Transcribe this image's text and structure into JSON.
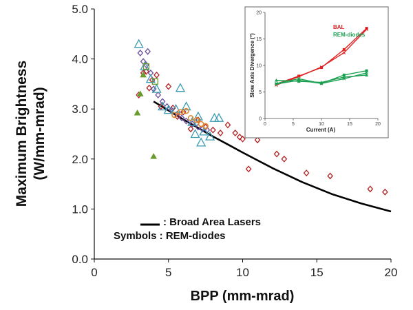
{
  "chart_data": [
    {
      "type": "scatter",
      "title": "",
      "xlabel": "BPP (mm-mrad)",
      "ylabel": "Maximum Brightness (W/mm-mrad)",
      "ylabel_lines": [
        "Maximum Brightness",
        "(W/mm-mrad)"
      ],
      "xlim": [
        0,
        20
      ],
      "ylim": [
        0,
        5
      ],
      "xticks": [
        "0",
        "5",
        "10",
        "15",
        "20"
      ],
      "yticks": [
        "0.0",
        "1.0",
        "2.0",
        "3.0",
        "4.0",
        "5.0"
      ],
      "grid": false,
      "legend": {
        "placement": "bottom-left",
        "line_label": ": Broad Area Lasers",
        "symbols_label": "Symbols : REM-diodes"
      },
      "curve": {
        "name": "Broad Area Lasers",
        "color": "#000000",
        "x": [
          4.0,
          5,
          6,
          7,
          8,
          9,
          10,
          12,
          14,
          16,
          18,
          20
        ],
        "y": [
          3.15,
          2.97,
          2.79,
          2.62,
          2.45,
          2.29,
          2.13,
          1.82,
          1.54,
          1.3,
          1.11,
          0.95
        ]
      },
      "series": [
        {
          "marker": "diamond",
          "color": "#b22222",
          "x": [
            3.0,
            3.3,
            3.5,
            3.7,
            3.9,
            4.2,
            4.5,
            5.0,
            5.3,
            5.6,
            6.0,
            6.5,
            7.0,
            7.5,
            8.0,
            8.5,
            9.0,
            9.5,
            9.8,
            10.0,
            10.4,
            11.0,
            12.3,
            12.8,
            14.3,
            15.9,
            18.6,
            19.6
          ],
          "y": [
            3.28,
            3.72,
            3.75,
            3.42,
            3.58,
            3.68,
            3.05,
            3.45,
            3.02,
            2.85,
            2.94,
            2.6,
            2.78,
            2.64,
            2.58,
            2.52,
            2.68,
            2.52,
            2.44,
            2.4,
            1.8,
            2.38,
            2.1,
            2.0,
            1.72,
            1.66,
            1.4,
            1.34
          ]
        },
        {
          "marker": "diamond",
          "color": "#6a4c9c",
          "x": [
            3.1,
            3.3,
            3.5,
            3.6,
            3.8,
            4.0,
            4.3,
            4.6,
            4.9,
            5.2,
            5.6,
            5.9,
            6.2,
            6.6,
            7.0,
            7.3,
            7.6
          ],
          "y": [
            4.12,
            3.95,
            3.88,
            4.15,
            3.72,
            3.4,
            3.28,
            3.15,
            3.05,
            2.98,
            2.9,
            2.82,
            2.76,
            2.7,
            2.64,
            2.6,
            2.58
          ]
        },
        {
          "marker": "triangle",
          "color": "#3a9ab2",
          "x": [
            3.0,
            3.4,
            3.8,
            4.2,
            4.6,
            5.0,
            5.5,
            5.8,
            6.2,
            6.6,
            7.0,
            7.4,
            7.8,
            8.1,
            8.4,
            7.2,
            6.8
          ],
          "y": [
            4.3,
            3.85,
            3.6,
            3.4,
            3.05,
            2.98,
            3.0,
            3.42,
            3.05,
            2.74,
            2.85,
            2.55,
            2.45,
            2.82,
            2.82,
            2.33,
            2.5
          ]
        },
        {
          "marker": "triangle-filled",
          "color": "#6a9b2e",
          "x": [
            2.9,
            3.1,
            3.3,
            4.0
          ],
          "y": [
            2.92,
            3.3,
            3.68,
            2.05
          ]
        },
        {
          "marker": "circle",
          "color": "#e08a2e",
          "x": [
            5.4,
            5.8,
            6.2,
            6.5,
            6.9,
            7.2,
            7.5
          ],
          "y": [
            2.88,
            2.94,
            2.96,
            2.82,
            2.78,
            2.7,
            2.66
          ]
        },
        {
          "marker": "square-open",
          "color": "#6a9b2e",
          "x": [
            3.5,
            4.1
          ],
          "y": [
            3.85,
            3.55
          ]
        }
      ]
    },
    {
      "type": "line",
      "title": "",
      "xlabel": "Current (A)",
      "ylabel": "Slow Axis Divergence (°)",
      "xlim": [
        0,
        20
      ],
      "ylim": [
        0,
        20
      ],
      "xticks": [
        "0",
        "5",
        "10",
        "15",
        "20"
      ],
      "yticks": [
        "0",
        "5",
        "10",
        "15",
        "20"
      ],
      "legend": {
        "placement": "top-right"
      },
      "x": [
        2,
        6,
        10,
        14,
        18
      ],
      "series": [
        {
          "name": "BAL",
          "color": "#e02020",
          "marker": "square",
          "values": [
            6.5,
            8.0,
            9.6,
            13.0,
            17.0
          ]
        },
        {
          "name": "",
          "color": "#e02020",
          "marker": "cross",
          "values": [
            6.3,
            7.9,
            9.7,
            12.4,
            16.8
          ]
        },
        {
          "name": "REM-diodes",
          "color": "#1aa050",
          "marker": "square",
          "values": [
            6.5,
            7.2,
            6.6,
            8.2,
            9.0
          ]
        },
        {
          "name": "",
          "color": "#1aa050",
          "marker": "triangle",
          "values": [
            7.2,
            7.0,
            6.8,
            7.8,
            8.2
          ]
        },
        {
          "name": "",
          "color": "#1aa050",
          "marker": "cross",
          "values": [
            6.6,
            7.5,
            6.6,
            7.5,
            8.6
          ]
        }
      ]
    }
  ]
}
